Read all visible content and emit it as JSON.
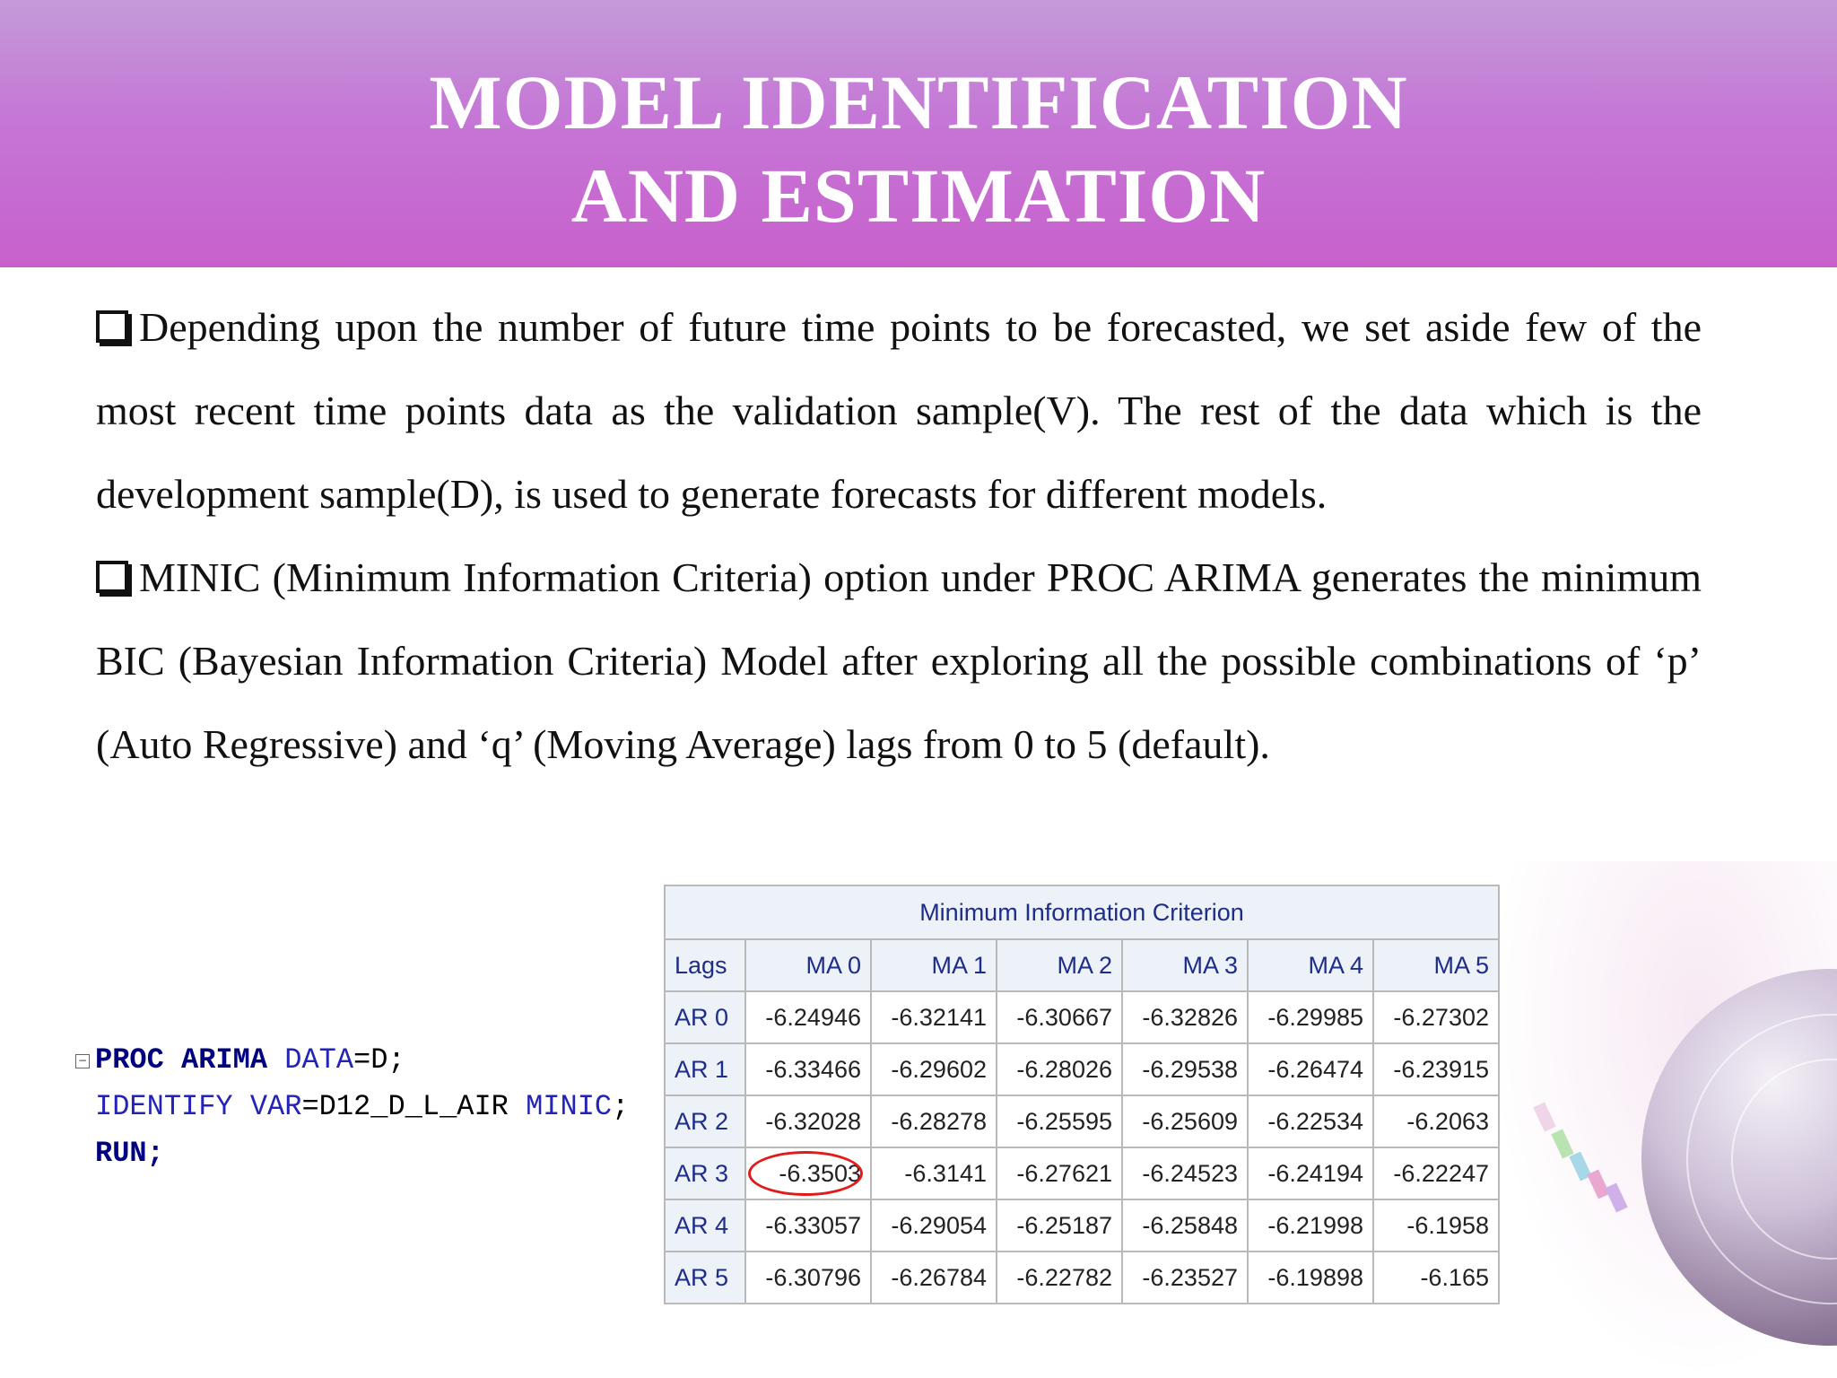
{
  "slide": {
    "title_line1": "MODEL IDENTIFICATION",
    "title_line2": "AND ESTIMATION",
    "paragraph1": "Depending upon the number of future time points to be forecasted, we set aside few of the most recent time points data as the validation sample(V). The rest of the data which is the development sample(D), is used to generate forecasts for different models.",
    "paragraph2": "MINIC (Minimum Information Criteria) option under PROC ARIMA generates the minimum BIC (Bayesian Information Criteria) Model after exploring all the possible combinations of  ‘p’ (Auto Regressive) and ‘q’ (Moving Average) lags from 0 to 5 (default)."
  },
  "code": {
    "l1_a": "PROC ARIMA",
    "l1_b": " DATA",
    "l1_c": "=D;",
    "l2_a": "IDENTIFY VAR",
    "l2_b": "=D12_D_L_AIR ",
    "l2_c": "MINIC",
    "l2_d": ";",
    "l3": "RUN;"
  },
  "table": {
    "caption": "Minimum Information Criterion",
    "lags_header": "Lags",
    "columns": [
      "MA 0",
      "MA 1",
      "MA 2",
      "MA 3",
      "MA 4",
      "MA 5"
    ],
    "rows": [
      {
        "label": "AR 0",
        "values": [
          "-6.24946",
          "-6.32141",
          "-6.30667",
          "-6.32826",
          "-6.29985",
          "-6.27302"
        ]
      },
      {
        "label": "AR 1",
        "values": [
          "-6.33466",
          "-6.29602",
          "-6.28026",
          "-6.29538",
          "-6.26474",
          "-6.23915"
        ]
      },
      {
        "label": "AR 2",
        "values": [
          "-6.32028",
          "-6.28278",
          "-6.25595",
          "-6.25609",
          "-6.22534",
          "-6.2063"
        ]
      },
      {
        "label": "AR 3",
        "values": [
          "-6.3503",
          "-6.3141",
          "-6.27621",
          "-6.24523",
          "-6.24194",
          "-6.22247"
        ]
      },
      {
        "label": "AR 4",
        "values": [
          "-6.33057",
          "-6.29054",
          "-6.25187",
          "-6.25848",
          "-6.21998",
          "-6.1958"
        ]
      },
      {
        "label": "AR 5",
        "values": [
          "-6.30796",
          "-6.26784",
          "-6.22782",
          "-6.23527",
          "-6.19898",
          "-6.165"
        ]
      }
    ],
    "highlight_color": "#e21a1a"
  },
  "decor": {
    "globe_icon": "globe-icon"
  }
}
